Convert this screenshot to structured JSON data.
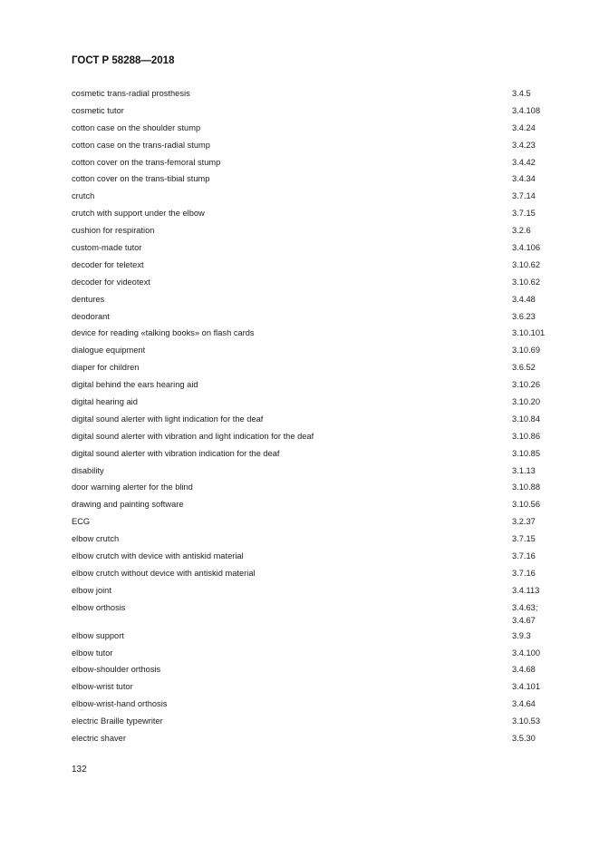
{
  "header": {
    "title": "ГОСТ Р 58288—2018"
  },
  "entries": [
    {
      "term": "cosmetic trans-radial prosthesis",
      "refs": [
        "3.4.5"
      ]
    },
    {
      "term": "cosmetic tutor",
      "refs": [
        "3.4.108"
      ]
    },
    {
      "term": "cotton case on the shoulder stump",
      "refs": [
        "3.4.24"
      ]
    },
    {
      "term": "cotton case on the trans-radial stump",
      "refs": [
        "3.4.23"
      ]
    },
    {
      "term": "cotton cover on the trans-femoral stump",
      "refs": [
        "3.4.42"
      ]
    },
    {
      "term": "cotton cover on the trans-tibial stump",
      "refs": [
        "3.4.34"
      ]
    },
    {
      "term": "crutch",
      "refs": [
        "3.7.14"
      ]
    },
    {
      "term": "crutch with support under the elbow",
      "refs": [
        "3.7.15"
      ]
    },
    {
      "term": "cushion for respiration",
      "refs": [
        "3.2.6"
      ]
    },
    {
      "term": "custom-made tutor",
      "refs": [
        "3.4.106"
      ]
    },
    {
      "term": "decoder for teletext",
      "refs": [
        "3.10.62"
      ]
    },
    {
      "term": "decoder for videotext",
      "refs": [
        "3.10.62"
      ]
    },
    {
      "term": "dentures",
      "refs": [
        "3.4.48"
      ]
    },
    {
      "term": "deodorant",
      "refs": [
        "3.6.23"
      ]
    },
    {
      "term": "device for reading «talking books» on flash cards",
      "refs": [
        "3.10.101"
      ]
    },
    {
      "term": "dialogue equipment",
      "refs": [
        "3.10.69"
      ]
    },
    {
      "term": "diaper for children",
      "refs": [
        "3.6.52"
      ]
    },
    {
      "term": "digital behind the ears hearing aid",
      "refs": [
        "3.10.26"
      ]
    },
    {
      "term": "digital hearing aid",
      "refs": [
        "3.10.20"
      ]
    },
    {
      "term": "digital sound alerter with light indication for the deaf",
      "refs": [
        "3.10.84"
      ]
    },
    {
      "term": "digital sound alerter with vibration and light indication for the deaf",
      "refs": [
        "3.10.86"
      ]
    },
    {
      "term": "digital sound alerter with vibration indication for the deaf",
      "refs": [
        "3.10.85"
      ]
    },
    {
      "term": "disability",
      "refs": [
        "3.1.13"
      ]
    },
    {
      "term": "door warning alerter for the blind",
      "refs": [
        "3.10.88"
      ]
    },
    {
      "term": "drawing and painting software",
      "refs": [
        "3.10.56"
      ]
    },
    {
      "term": "ECG",
      "refs": [
        "3.2.37"
      ]
    },
    {
      "term": "elbow crutch",
      "refs": [
        "3.7.15"
      ]
    },
    {
      "term": "elbow crutch with device with antiskid material",
      "refs": [
        "3.7.16"
      ]
    },
    {
      "term": "elbow crutch without device with antiskid material",
      "refs": [
        "3.7.16"
      ]
    },
    {
      "term": "elbow joint",
      "refs": [
        "3.4.113"
      ]
    },
    {
      "term": "elbow orthosis",
      "refs": [
        "3.4.63;",
        "3.4.67"
      ]
    },
    {
      "term": "elbow support",
      "refs": [
        "3.9.3"
      ]
    },
    {
      "term": "elbow tutor",
      "refs": [
        "3.4.100"
      ]
    },
    {
      "term": "elbow-shoulder orthosis",
      "refs": [
        "3.4.68"
      ]
    },
    {
      "term": "elbow-wrist tutor",
      "refs": [
        "3.4.101"
      ]
    },
    {
      "term": "elbow-wrist-hand orthosis",
      "refs": [
        "3.4.64"
      ]
    },
    {
      "term": "electric Braille typewriter",
      "refs": [
        "3.10.53"
      ]
    },
    {
      "term": "electric shaver",
      "refs": [
        "3.5.30"
      ]
    }
  ],
  "footer": {
    "page_number": "132"
  }
}
